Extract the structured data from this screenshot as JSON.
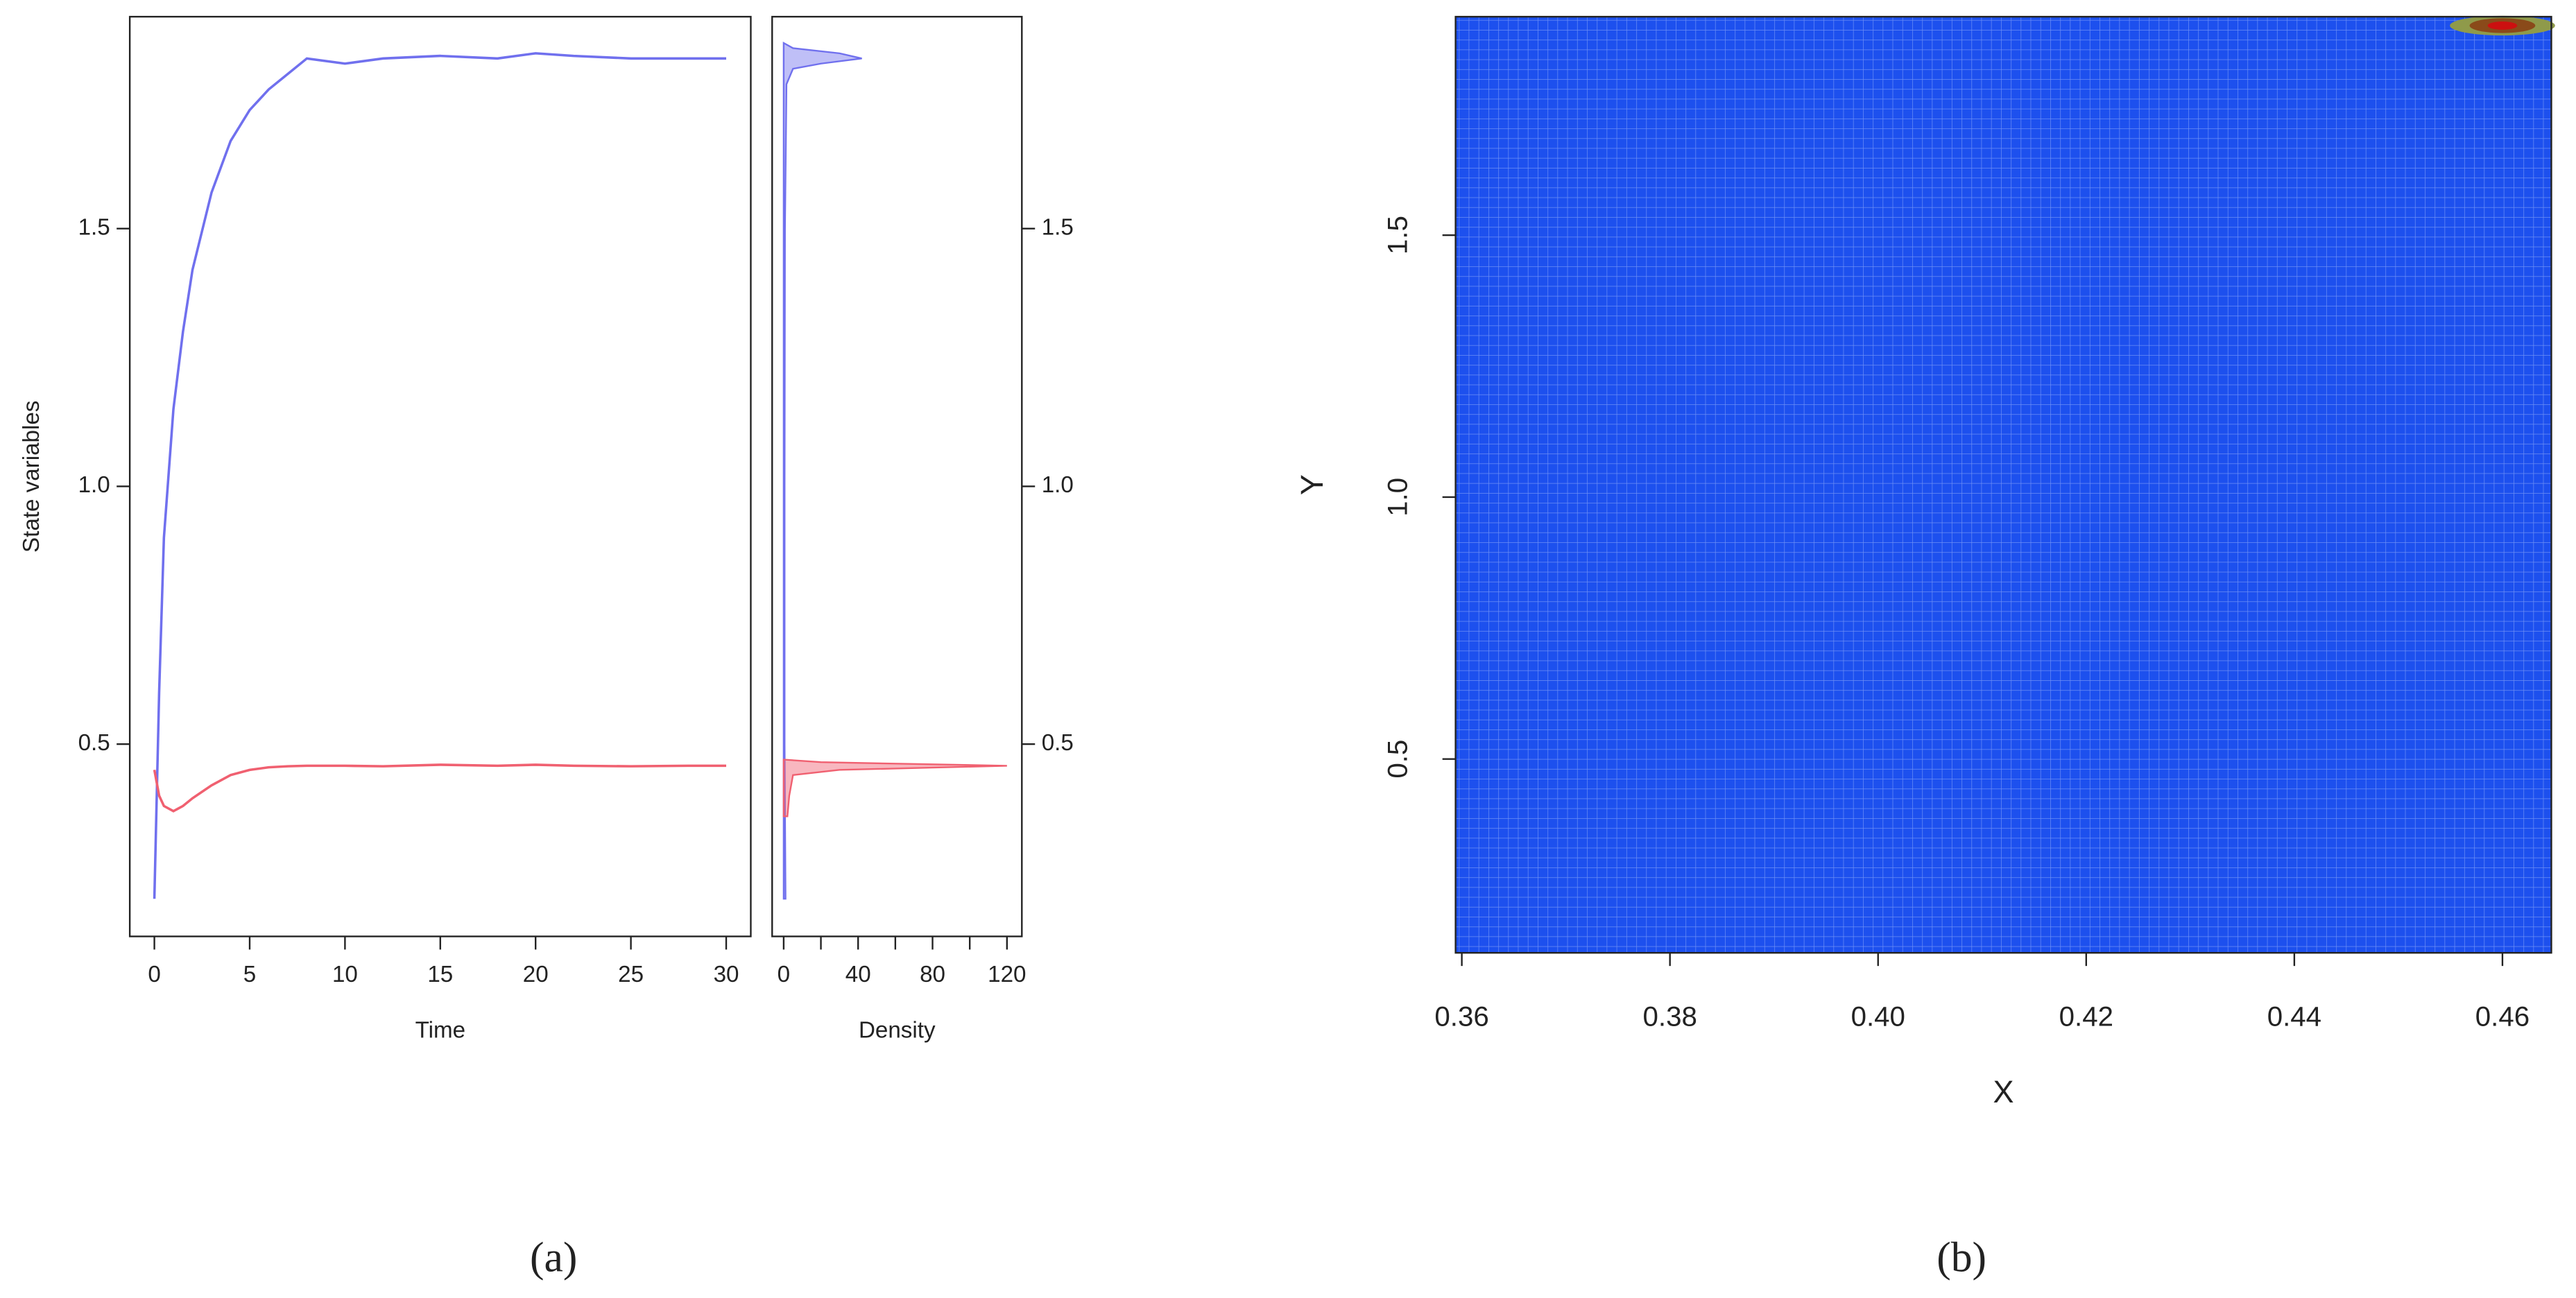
{
  "captions": [
    "(a)",
    "(b)"
  ],
  "chart_data": [
    {
      "type": "line",
      "xlabel": "Time",
      "ylabel": "State variables",
      "xlim": [
        -1.29,
        31.29
      ],
      "ylim": [
        0.127,
        1.911
      ],
      "xticks": [
        0,
        5,
        10,
        15,
        20,
        25,
        30
      ],
      "yticks": [
        0.5,
        {
          "value": 1,
          "label": "1.0"
        },
        1.5
      ],
      "x": [
        0,
        0.25,
        0.5,
        1,
        1.5,
        2,
        3,
        4,
        5,
        6,
        7,
        8,
        10,
        12,
        15,
        18,
        20,
        22,
        25,
        28,
        30
      ],
      "series": [
        {
          "color": "#7070ee",
          "values": [
            0.2,
            0.6,
            0.9,
            1.15,
            1.3,
            1.42,
            1.57,
            1.67,
            1.73,
            1.77,
            1.8,
            1.83,
            1.82,
            1.83,
            1.835,
            1.83,
            1.84,
            1.835,
            1.83,
            1.83,
            1.83
          ]
        },
        {
          "color": "#f06070",
          "values": [
            0.45,
            0.4,
            0.38,
            0.37,
            0.38,
            0.395,
            0.42,
            0.44,
            0.45,
            0.455,
            0.457,
            0.458,
            0.458,
            0.457,
            0.46,
            0.458,
            0.46,
            0.458,
            0.457,
            0.458,
            0.458
          ]
        }
      ]
    },
    {
      "type": "density",
      "xlabel": "Density",
      "xlim": [
        -6.2,
        128
      ],
      "ylim": [
        0.127,
        1.911
      ],
      "xticks": [
        0,
        40,
        80,
        120
      ],
      "xminor_ticks": [
        20,
        60,
        100
      ],
      "yticks": [
        0.5,
        {
          "value": 1,
          "label": "1.0"
        },
        1.5
      ],
      "series": [
        {
          "color": "#7070ee",
          "y": [
            0.2,
            0.5,
            1.0,
            1.5,
            1.78,
            1.81,
            1.82,
            1.83,
            1.84,
            1.85,
            1.86
          ],
          "values": [
            1,
            0.5,
            0.5,
            0.7,
            1.5,
            5,
            20,
            42,
            30,
            5,
            0
          ]
        },
        {
          "color": "#f06070",
          "y": [
            0.36,
            0.4,
            0.44,
            0.45,
            0.458,
            0.465,
            0.47
          ],
          "values": [
            2,
            3,
            5,
            30,
            120,
            20,
            0
          ]
        }
      ]
    },
    {
      "type": "heatmap",
      "xlabel": "X",
      "ylabel": "Y",
      "xlim": [
        0.3594,
        0.4647
      ],
      "ylim": [
        0.13,
        1.917
      ],
      "xticks": [
        0.36,
        0.38,
        {
          "value": 0.4,
          "label": "0.40"
        },
        0.42,
        0.44,
        0.46
      ],
      "yticks": [
        0.5,
        {
          "value": 1,
          "label": "1.0"
        },
        1.5
      ],
      "color": "#1d50ee",
      "hotspot": {
        "x": 0.46,
        "y": 1.9
      }
    }
  ]
}
